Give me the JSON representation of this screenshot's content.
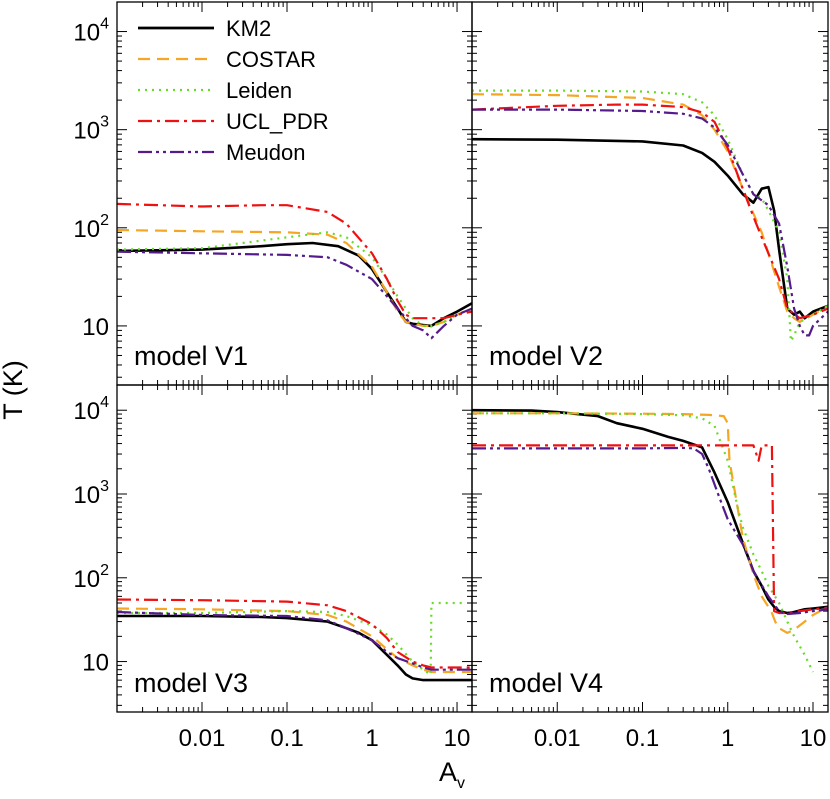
{
  "figure": {
    "ylabel": "T (K)",
    "xlabel": "A",
    "xlabel_sub": "v"
  },
  "legend": {
    "position": "top-left",
    "entries": [
      {
        "label": "KM2",
        "color": "#000000",
        "dash": "solid"
      },
      {
        "label": "COSTAR",
        "color": "#f5a623",
        "dash": "dash"
      },
      {
        "label": "Leiden",
        "color": "#66dd22",
        "dash": "dot"
      },
      {
        "label": "UCL_PDR",
        "color": "#ee1111",
        "dash": "dashdot"
      },
      {
        "label": "Meudon",
        "color": "#551a8b",
        "dash": "dashdotdot"
      }
    ]
  },
  "axes": {
    "x_scale": "log",
    "y_scale": "log",
    "xlim": [
      0.001,
      15
    ],
    "ylim": [
      2.5,
      20000
    ],
    "x_ticks": [
      {
        "v": 0.01,
        "label": "0.01"
      },
      {
        "v": 0.1,
        "label": "0.1"
      },
      {
        "v": 1,
        "label": "1"
      },
      {
        "v": 10,
        "label": "10"
      }
    ],
    "y_ticks": [
      {
        "v": 10,
        "base": "10",
        "exp": ""
      },
      {
        "v": 100,
        "base": "10",
        "exp": "2"
      },
      {
        "v": 1000,
        "base": "10",
        "exp": "3"
      },
      {
        "v": 10000,
        "base": "10",
        "exp": "4"
      }
    ]
  },
  "chart_data": [
    {
      "type": "line",
      "panel_label": "model V1",
      "x_scale": "log",
      "y_scale": "log",
      "series": [
        {
          "name": "KM2",
          "x": [
            0.001,
            0.01,
            0.05,
            0.1,
            0.2,
            0.4,
            0.7,
            1,
            1.5,
            2,
            2.5,
            3,
            4,
            5,
            7,
            10,
            15
          ],
          "y": [
            58,
            60,
            65,
            68,
            70,
            65,
            52,
            38,
            22,
            15,
            11,
            10.5,
            10.2,
            10,
            12,
            14,
            17
          ]
        },
        {
          "name": "COSTAR",
          "x": [
            0.001,
            0.01,
            0.1,
            0.3,
            0.5,
            1,
            1.5,
            2,
            2.5,
            3,
            4,
            5,
            7,
            10,
            15
          ],
          "y": [
            95,
            92,
            90,
            85,
            70,
            40,
            22,
            14,
            11,
            10.5,
            10,
            10,
            11,
            13,
            15
          ]
        },
        {
          "name": "Leiden",
          "x": [
            0.001,
            0.01,
            0.1,
            0.3,
            0.5,
            1,
            1.5,
            2,
            2.5,
            3,
            4,
            5,
            7,
            10,
            15
          ],
          "y": [
            60,
            62,
            80,
            90,
            80,
            50,
            30,
            20,
            15,
            12,
            10,
            10,
            11,
            13,
            15
          ]
        },
        {
          "name": "UCL_PDR",
          "x": [
            0.001,
            0.01,
            0.05,
            0.1,
            0.3,
            0.5,
            1,
            1.5,
            2,
            2.5,
            3,
            4,
            5,
            7,
            10,
            15
          ],
          "y": [
            175,
            165,
            170,
            170,
            145,
            110,
            55,
            30,
            18,
            13,
            12,
            12,
            12,
            12,
            13,
            14
          ]
        },
        {
          "name": "Meudon",
          "x": [
            0.001,
            0.01,
            0.1,
            0.3,
            0.5,
            1,
            1.5,
            2,
            2.5,
            3,
            4,
            5,
            7,
            10,
            15
          ],
          "y": [
            57,
            55,
            53,
            50,
            42,
            30,
            20,
            15,
            12,
            10,
            9,
            7.5,
            10,
            13,
            15
          ]
        }
      ]
    },
    {
      "type": "line",
      "panel_label": "model V2",
      "x_scale": "log",
      "y_scale": "log",
      "series": [
        {
          "name": "KM2",
          "x": [
            0.001,
            0.01,
            0.1,
            0.3,
            0.5,
            0.7,
            1,
            1.5,
            2,
            2.5,
            3,
            3.5,
            4,
            5,
            6,
            7,
            8,
            10,
            15
          ],
          "y": [
            800,
            790,
            760,
            690,
            580,
            470,
            340,
            220,
            180,
            250,
            260,
            150,
            60,
            15,
            13,
            14,
            12,
            14,
            16
          ]
        },
        {
          "name": "COSTAR",
          "x": [
            0.001,
            0.01,
            0.1,
            0.3,
            0.5,
            0.7,
            1,
            1.5,
            2,
            2.5,
            3,
            4,
            5,
            6,
            7,
            10,
            15
          ],
          "y": [
            2300,
            2250,
            2100,
            1800,
            1400,
            1000,
            600,
            250,
            140,
            90,
            55,
            25,
            14,
            12,
            11,
            13,
            16
          ]
        },
        {
          "name": "Leiden",
          "x": [
            0.001,
            0.01,
            0.1,
            0.3,
            0.5,
            0.7,
            1,
            1.5,
            2,
            2.5,
            3,
            4,
            5,
            5.5,
            6,
            7,
            10,
            15
          ],
          "y": [
            2500,
            2500,
            2450,
            2300,
            1900,
            1400,
            800,
            350,
            220,
            200,
            150,
            90,
            30,
            7,
            8,
            11,
            13,
            16
          ]
        },
        {
          "name": "UCL_PDR",
          "x": [
            0.001,
            0.01,
            0.05,
            0.1,
            0.3,
            0.5,
            0.7,
            1,
            1.5,
            2,
            2.5,
            3,
            4,
            5,
            7,
            10,
            15
          ],
          "y": [
            1600,
            1750,
            1800,
            1800,
            1700,
            1500,
            1200,
            650,
            250,
            130,
            80,
            55,
            30,
            15,
            12,
            13,
            15
          ]
        },
        {
          "name": "Meudon",
          "x": [
            0.001,
            0.01,
            0.1,
            0.3,
            0.5,
            0.7,
            1,
            1.5,
            2,
            2.5,
            3,
            4,
            5,
            6,
            7,
            8,
            9,
            10,
            15
          ],
          "y": [
            1600,
            1600,
            1550,
            1450,
            1300,
            1050,
            700,
            350,
            220,
            190,
            170,
            110,
            40,
            15,
            10,
            8,
            8,
            10,
            14
          ]
        }
      ]
    },
    {
      "type": "line",
      "panel_label": "model V3",
      "x_scale": "log",
      "y_scale": "log",
      "series": [
        {
          "name": "KM2",
          "x": [
            0.001,
            0.01,
            0.05,
            0.1,
            0.3,
            0.5,
            0.7,
            1,
            1.5,
            2,
            2.5,
            3,
            4,
            5,
            7,
            10,
            15
          ],
          "y": [
            35,
            35,
            34,
            33,
            30,
            25,
            22,
            18,
            12,
            9,
            7,
            6.3,
            6,
            6,
            6,
            6,
            6
          ]
        },
        {
          "name": "COSTAR",
          "x": [
            0.001,
            0.01,
            0.1,
            0.3,
            0.5,
            1,
            1.5,
            2,
            3,
            4,
            5,
            7,
            10,
            15
          ],
          "y": [
            43,
            42,
            40,
            36,
            30,
            20,
            14,
            11,
            9,
            8,
            7.5,
            7.5,
            7.5,
            7.5
          ]
        },
        {
          "name": "Leiden",
          "x": [
            0.001,
            0.01,
            0.1,
            0.3,
            0.5,
            1,
            1.5,
            2,
            3,
            4,
            4.9,
            5,
            7,
            10,
            12
          ],
          "y": [
            38,
            38,
            40,
            39,
            35,
            27,
            21,
            16,
            10,
            8,
            7,
            50,
            50,
            50,
            50
          ]
        },
        {
          "name": "UCL_PDR",
          "x": [
            0.001,
            0.01,
            0.1,
            0.3,
            0.5,
            1,
            1.5,
            2,
            3,
            4,
            5,
            7,
            10,
            15
          ],
          "y": [
            55,
            54,
            52,
            47,
            40,
            28,
            19,
            13,
            10,
            9,
            8.5,
            8.5,
            8.5,
            8.5
          ]
        },
        {
          "name": "Meudon",
          "x": [
            0.001,
            0.01,
            0.1,
            0.3,
            0.5,
            1,
            1.5,
            2,
            3,
            4,
            5,
            7,
            10,
            15
          ],
          "y": [
            39,
            36,
            35,
            31,
            25,
            18,
            13,
            11,
            9.5,
            8.5,
            8,
            8,
            8,
            8
          ]
        }
      ]
    },
    {
      "type": "line",
      "panel_label": "model V4",
      "x_scale": "log",
      "y_scale": "log",
      "series": [
        {
          "name": "KM2",
          "x": [
            0.001,
            0.005,
            0.01,
            0.03,
            0.05,
            0.1,
            0.2,
            0.3,
            0.5,
            0.7,
            1,
            1.5,
            2,
            2.5,
            3,
            3.5,
            4,
            5,
            6,
            8,
            10,
            15
          ],
          "y": [
            10000,
            9900,
            9500,
            8500,
            7000,
            6000,
            4800,
            4300,
            3600,
            1800,
            800,
            260,
            120,
            80,
            55,
            45,
            40,
            38,
            39,
            42,
            43,
            45
          ]
        },
        {
          "name": "COSTAR",
          "x": [
            0.001,
            0.01,
            0.1,
            0.3,
            0.6,
            0.9,
            1.0,
            1.05,
            1.5,
            2,
            2.5,
            3,
            3.3,
            3.6,
            4,
            5,
            6,
            8,
            10,
            15
          ],
          "y": [
            9200,
            9200,
            9100,
            9000,
            8800,
            8500,
            7000,
            2500,
            300,
            110,
            60,
            45,
            38,
            30,
            25,
            22,
            24,
            30,
            36,
            45
          ]
        },
        {
          "name": "Leiden",
          "x": [
            0.001,
            0.01,
            0.1,
            0.3,
            0.5,
            0.7,
            1,
            1.3,
            1.5,
            2,
            2.5,
            3,
            4,
            5,
            6,
            8,
            10
          ],
          "y": [
            9200,
            9200,
            9000,
            8700,
            8000,
            6500,
            2500,
            700,
            400,
            190,
            120,
            80,
            50,
            30,
            20,
            12,
            7.5
          ]
        },
        {
          "name": "UCL_PDR",
          "x": [
            0.001,
            0.01,
            0.1,
            0.5,
            1,
            1.5,
            2,
            2.3,
            2.5,
            2.7,
            3,
            3.3,
            3.5,
            4,
            5,
            7,
            10,
            15
          ],
          "y": [
            3800,
            3800,
            3800,
            3800,
            3800,
            3800,
            3800,
            2500,
            3800,
            3800,
            3800,
            3800,
            40,
            38,
            38,
            40,
            42,
            44
          ]
        },
        {
          "name": "Meudon",
          "x": [
            0.001,
            0.01,
            0.1,
            0.3,
            0.4,
            0.5,
            0.6,
            0.8,
            1,
            1.5,
            2,
            3,
            4,
            5,
            7,
            10,
            15
          ],
          "y": [
            3500,
            3500,
            3500,
            3550,
            3500,
            3000,
            2000,
            900,
            500,
            250,
            120,
            60,
            40,
            37,
            38,
            40,
            42
          ]
        }
      ]
    }
  ]
}
